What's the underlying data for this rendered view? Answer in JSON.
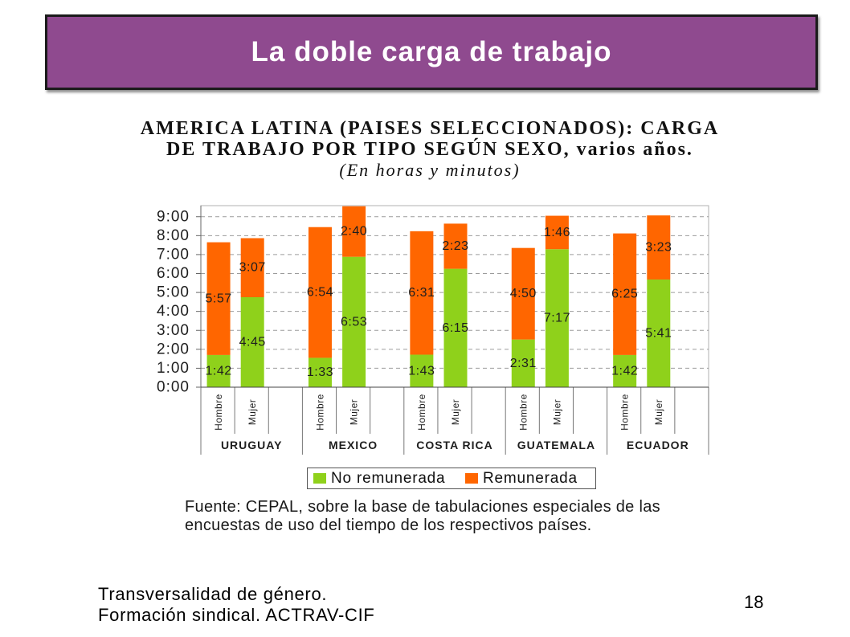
{
  "slide": {
    "title": "La doble carga de trabajo",
    "header_color": "#8F4A8F"
  },
  "chart_data": {
    "type": "bar",
    "stacked": true,
    "title": [
      "AMERICA LATINA (PAISES SELECCIONADOS): CARGA",
      "DE TRABAJO POR TIPO SEGÚN SEXO, varios años."
    ],
    "subtitle": "(En horas y minutos)",
    "groups": [
      "URUGUAY",
      "MEXICO",
      "COSTA RICA",
      "GUATEMALA",
      "ECUADOR"
    ],
    "categories": [
      "Hombre",
      "Mujer"
    ],
    "series": [
      {
        "name": "No remunerada",
        "color": "#8FD11B",
        "values": [
          [
            "1:42",
            "4:45"
          ],
          [
            "1:33",
            "6:53"
          ],
          [
            "1:43",
            "6:15"
          ],
          [
            "2:31",
            "7:17"
          ],
          [
            "1:42",
            "5:41"
          ]
        ]
      },
      {
        "name": "Remunerada",
        "color": "#FF6600",
        "values": [
          [
            "5:57",
            "3:07"
          ],
          [
            "6:54",
            "2:40"
          ],
          [
            "6:31",
            "2:23"
          ],
          [
            "4:50",
            "1:46"
          ],
          [
            "6:25",
            "3:23"
          ]
        ]
      }
    ],
    "yticks": [
      "0:00",
      "1:00",
      "2:00",
      "3:00",
      "4:00",
      "5:00",
      "6:00",
      "7:00",
      "8:00",
      "9:00"
    ],
    "ylim": [
      "0:00",
      "9:35"
    ],
    "grid": true,
    "legend": "bottom",
    "source": [
      "Fuente: CEPAL, sobre la base de tabulaciones especiales de las",
      "encuestas de uso del tiempo de los respectivos países."
    ]
  },
  "footer": {
    "lines": [
      "Transversalidad de género.",
      "Formación sindical. ACTRAV-CIF"
    ],
    "page_number": "18"
  }
}
